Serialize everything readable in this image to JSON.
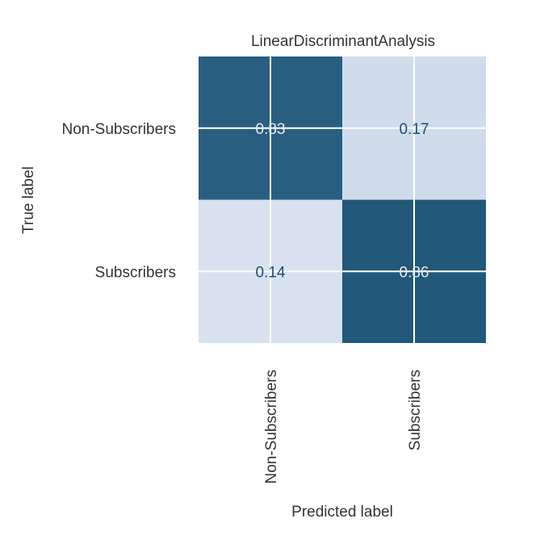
{
  "chart_data": {
    "type": "heatmap",
    "title": "LinearDiscriminantAnalysis",
    "xlabel": "Predicted label",
    "ylabel": "True label",
    "x_categories": [
      "Non-Subscribers",
      "Subscribers"
    ],
    "y_categories": [
      "Non-Subscribers",
      "Subscribers"
    ],
    "values": [
      [
        0.83,
        0.17
      ],
      [
        0.14,
        0.86
      ]
    ],
    "value_labels": [
      [
        "0.83",
        "0.17"
      ],
      [
        "0.14",
        "0.86"
      ]
    ],
    "colormap": "PuBu",
    "colors": {
      "low": "#fff7fb",
      "mid": "#74a9cf",
      "high": "#023858",
      "text_on_dark": "#eaeaf2",
      "text_on_light": "#1f4e79",
      "grid": "#ffffff",
      "label": "#333333"
    },
    "grid": true,
    "legend": "none"
  }
}
